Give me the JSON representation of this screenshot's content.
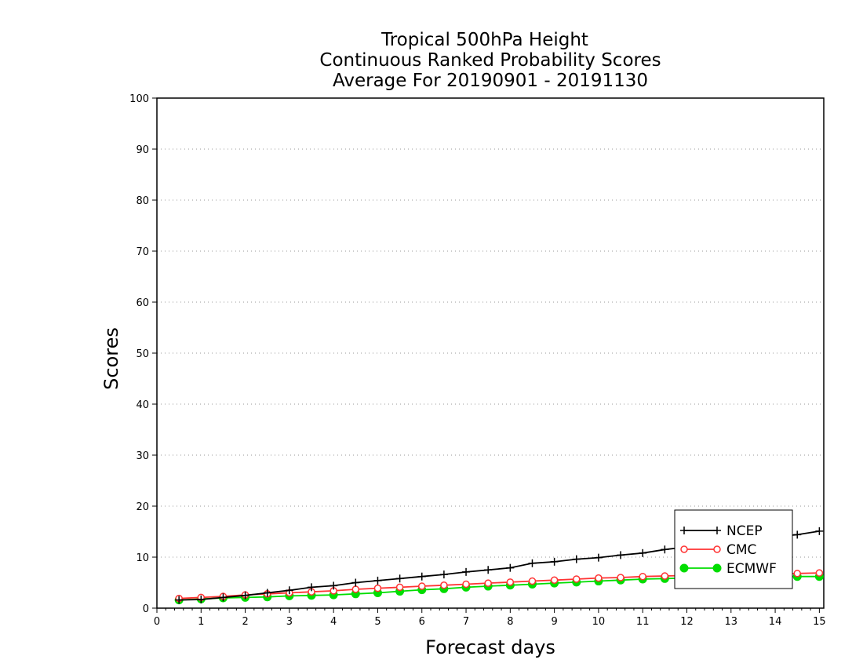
{
  "chart_data": {
    "type": "line",
    "title": [
      "Tropical 500hPa Height",
      "Continuous Ranked Probability Scores",
      "Average For 20190901 - 20191130"
    ],
    "xlabel": "Forecast days",
    "ylabel": "Scores",
    "xlim": [
      0,
      15.1
    ],
    "ylim": [
      0,
      100
    ],
    "x_ticks": [
      0,
      1,
      2,
      3,
      4,
      5,
      6,
      7,
      8,
      9,
      10,
      11,
      12,
      13,
      14,
      15
    ],
    "x_tick_labels": [
      "0",
      "1",
      "2",
      "3",
      "4",
      "5",
      "6",
      "7",
      "8",
      "9",
      "10",
      "11",
      "12",
      "13",
      "14",
      "15"
    ],
    "y_ticks": [
      0,
      10,
      20,
      30,
      40,
      50,
      60,
      70,
      80,
      90,
      100
    ],
    "y_tick_labels": [
      "0",
      "10",
      "20",
      "30",
      "40",
      "50",
      "60",
      "70",
      "80",
      "90",
      "100"
    ],
    "grid": "horizontal dotted",
    "legend_position": "bottom-right",
    "x": [
      0.5,
      1,
      1.5,
      2,
      2.5,
      3,
      3.5,
      4,
      4.5,
      5,
      5.5,
      6,
      6.5,
      7,
      7.5,
      8,
      8.5,
      9,
      9.5,
      10,
      10.5,
      11,
      11.5,
      12,
      12.5,
      13,
      13.5,
      14,
      14.5,
      15
    ],
    "series": [
      {
        "name": "NCEP",
        "color": "#000000",
        "marker": "plus",
        "values": [
          1.6,
          1.7,
          2.1,
          2.5,
          3.0,
          3.5,
          4.1,
          4.4,
          5.0,
          5.4,
          5.8,
          6.2,
          6.6,
          7.1,
          7.5,
          7.9,
          8.8,
          9.1,
          9.6,
          9.9,
          10.4,
          10.8,
          11.5,
          12.0,
          12.5,
          13.0,
          13.5,
          14.0,
          14.4,
          15.1
        ]
      },
      {
        "name": "CMC",
        "color": "#ff3333",
        "marker": "open-circle",
        "values": [
          1.9,
          2.1,
          2.3,
          2.6,
          2.8,
          3.0,
          3.2,
          3.4,
          3.7,
          3.9,
          4.1,
          4.3,
          4.5,
          4.7,
          4.9,
          5.1,
          5.3,
          5.5,
          5.7,
          5.9,
          6.0,
          6.2,
          6.3,
          6.4,
          6.5,
          6.5,
          6.6,
          6.7,
          6.8,
          6.9
        ]
      },
      {
        "name": "ECMWF",
        "color": "#00dd00",
        "marker": "filled-circle",
        "values": [
          1.6,
          1.8,
          2.0,
          2.1,
          2.2,
          2.4,
          2.5,
          2.6,
          2.8,
          3.0,
          3.3,
          3.6,
          3.8,
          4.1,
          4.3,
          4.5,
          4.7,
          4.9,
          5.1,
          5.3,
          5.5,
          5.7,
          5.8,
          5.9,
          6.0,
          6.1,
          6.1,
          6.2,
          6.2,
          6.2
        ]
      }
    ]
  }
}
